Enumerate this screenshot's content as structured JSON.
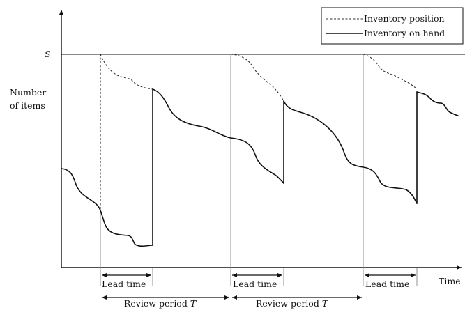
{
  "axes": {
    "y_label_line1": "Number",
    "y_label_line2": "of items",
    "x_label": "Time",
    "s_level_label": "S"
  },
  "legend": {
    "items": [
      {
        "label": "Inventory position",
        "style": "dashed"
      },
      {
        "label": "Inventory on hand",
        "style": "solid"
      }
    ]
  },
  "annotations": {
    "lead_time": "Lead time",
    "review_period_prefix": "Review period ",
    "review_period_symbol": "T"
  },
  "colors": {
    "ink": "#111111",
    "guide": "#9a9a9a",
    "background": "#ffffff"
  }
}
